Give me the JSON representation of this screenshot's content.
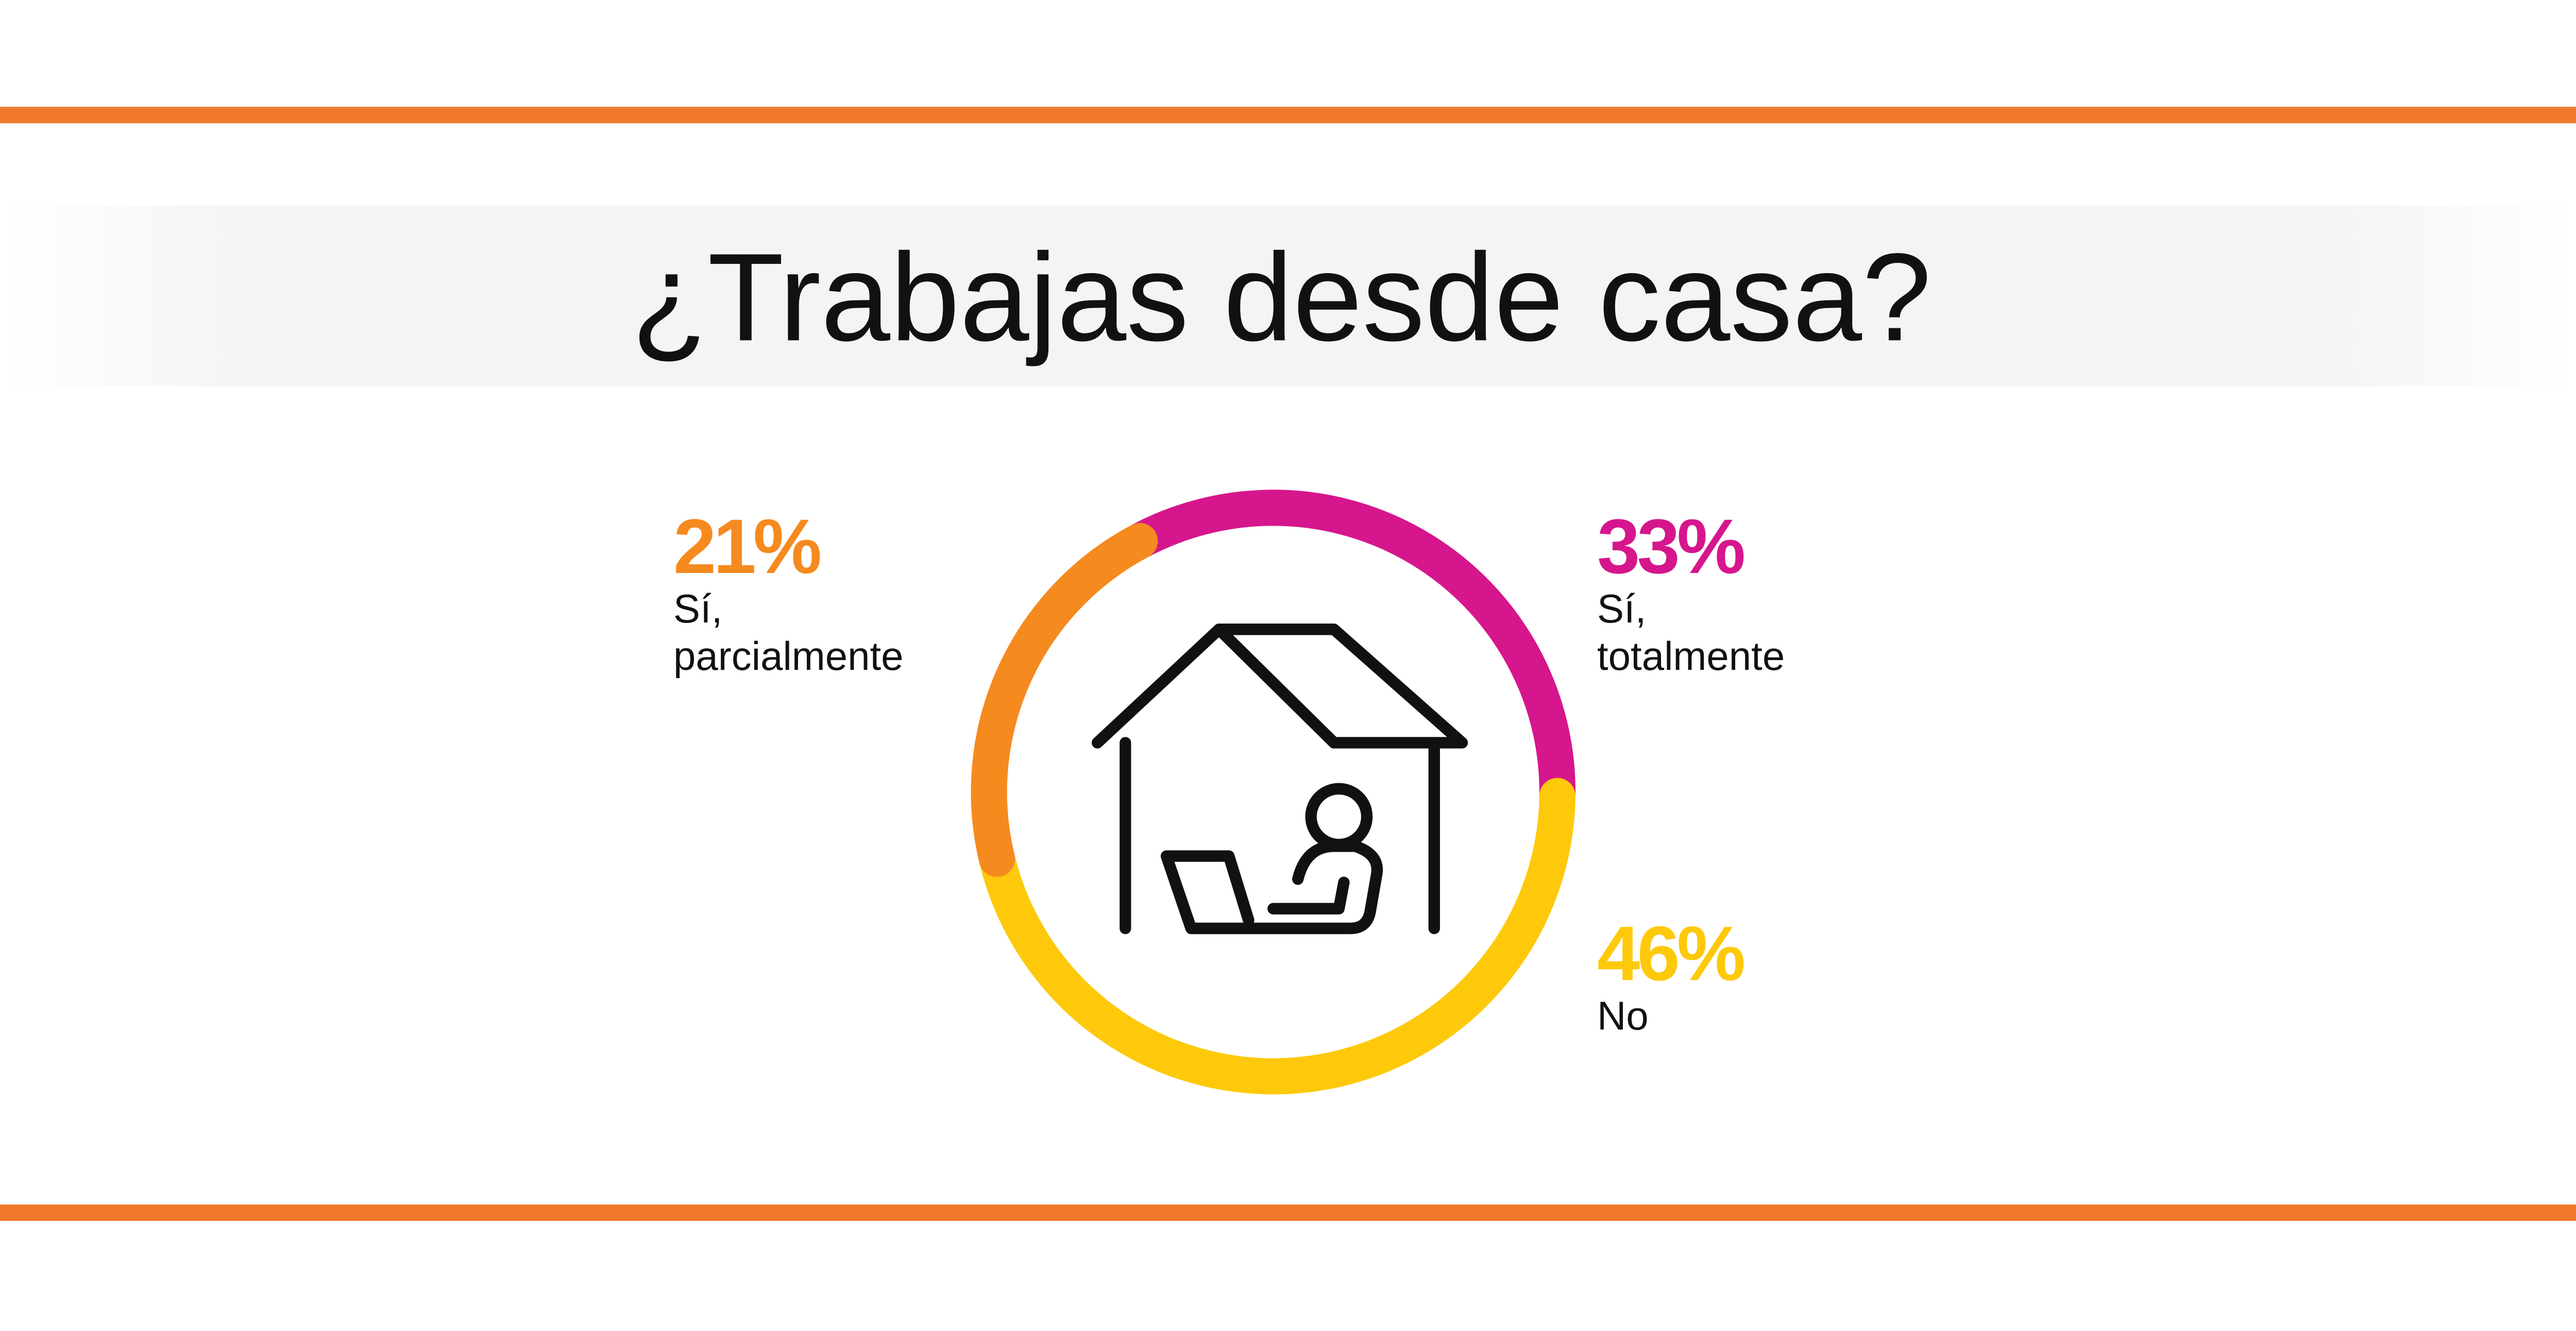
{
  "chart_data": {
    "type": "donut",
    "title": "¿Trabajas desde casa?",
    "categories": [
      "Sí, totalmente",
      "No",
      "Sí, parcialmente"
    ],
    "values": [
      33,
      46,
      21
    ],
    "value_labels": [
      "33%",
      "46%",
      "21%"
    ],
    "colors": [
      "#d6168c",
      "#fdc90a",
      "#f58a1f"
    ]
  }
}
